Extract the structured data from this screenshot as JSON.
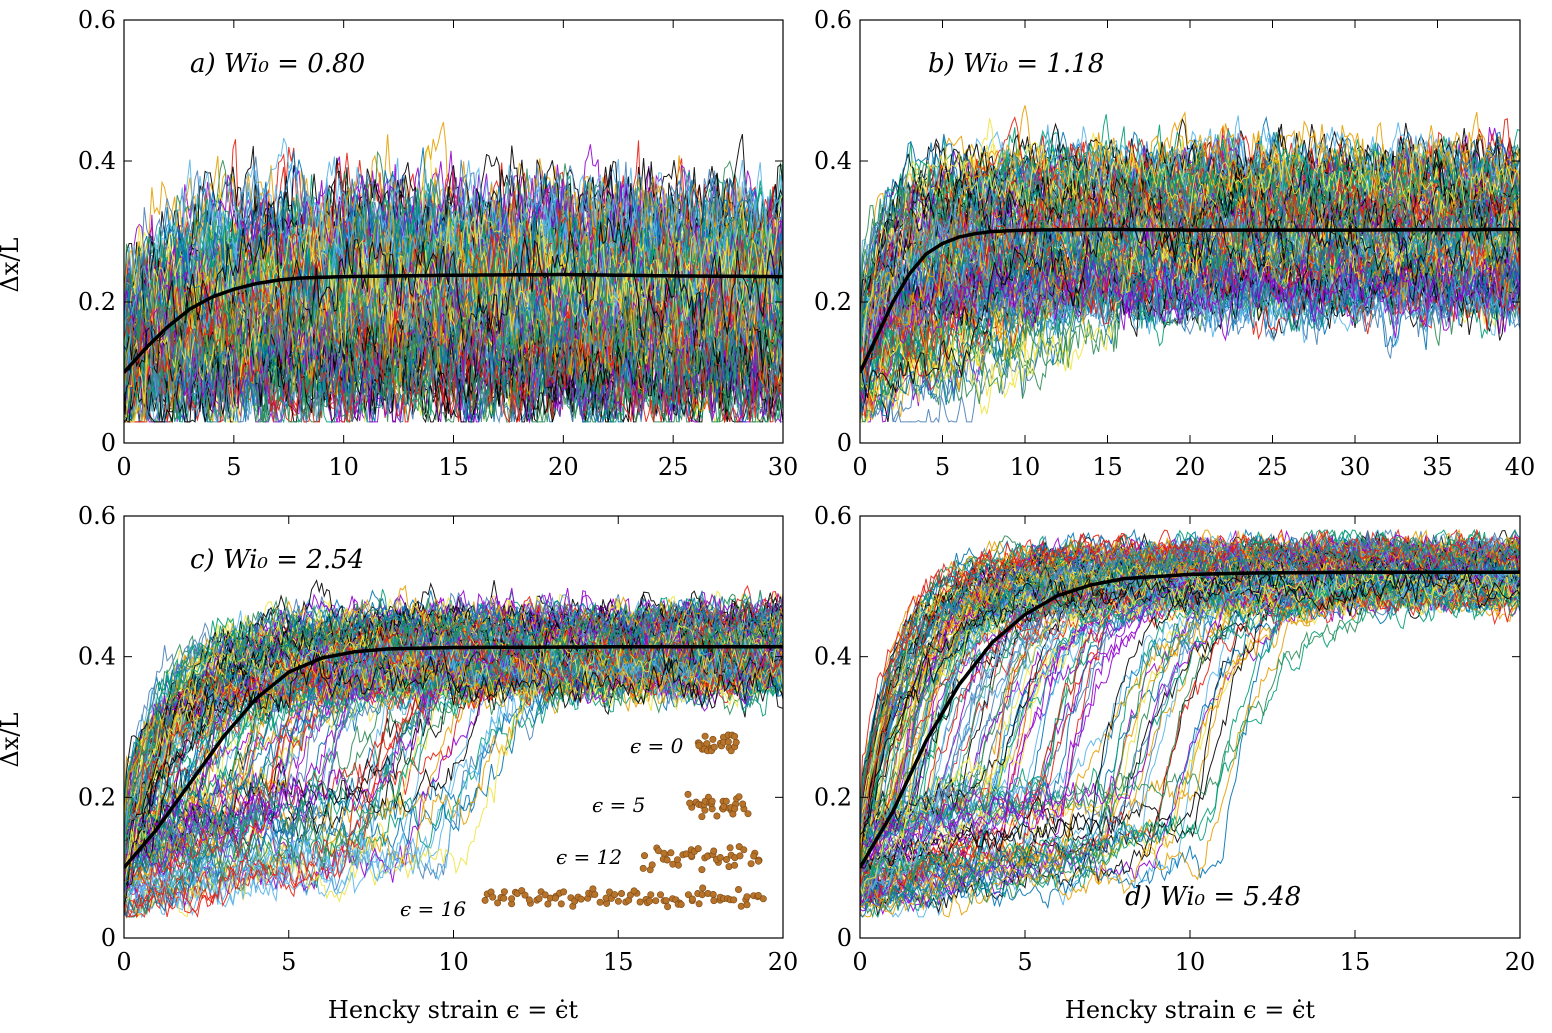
{
  "figure": {
    "x_title": "Hencky strain ϵ = ϵ̇t",
    "y_title": "Δx/L"
  },
  "colors": {
    "mean_curve": "#000000",
    "trajectory_palette": [
      "#9400d3",
      "#009e73",
      "#56b4e9",
      "#e69f00",
      "#f0e442",
      "#0072b2",
      "#e51e10",
      "#000000",
      "#4a7fb5",
      "#2e8b57"
    ],
    "bead": "#b8732a"
  },
  "chart_data": [
    {
      "id": "a",
      "type": "line",
      "label": "a) Wi₀ = 0.80",
      "xlim": [
        0,
        30
      ],
      "ylim": [
        0,
        0.6
      ],
      "xticks": [
        0,
        5,
        10,
        15,
        20,
        25,
        30
      ],
      "yticks": [
        0,
        0.2,
        0.4,
        0.6
      ],
      "ytick_labels": [
        "0",
        "0.2",
        "0.4",
        "0.6"
      ],
      "mean_curve": {
        "x": [
          0,
          1,
          2,
          3,
          4,
          5,
          6,
          7,
          8,
          10,
          15,
          20,
          25,
          30
        ],
        "y": [
          0.1,
          0.135,
          0.165,
          0.19,
          0.207,
          0.218,
          0.226,
          0.231,
          0.234,
          0.236,
          0.238,
          0.239,
          0.237,
          0.236
        ]
      },
      "trajectories": {
        "count": 150,
        "band_lower": 0.08,
        "band_upper": 0.33,
        "noise": 0.1
      }
    },
    {
      "id": "b",
      "type": "line",
      "label": "b) Wi₀ = 1.18",
      "xlim": [
        0,
        40
      ],
      "ylim": [
        0,
        0.6
      ],
      "xticks": [
        0,
        5,
        10,
        15,
        20,
        25,
        30,
        35,
        40
      ],
      "yticks": [
        0,
        0.2,
        0.4,
        0.6
      ],
      "ytick_labels": [
        "0",
        "0.2",
        "0.4",
        "0.6"
      ],
      "mean_curve": {
        "x": [
          0,
          1,
          2,
          3,
          4,
          5,
          6,
          7,
          8,
          10,
          15,
          20,
          30,
          40
        ],
        "y": [
          0.1,
          0.15,
          0.2,
          0.24,
          0.268,
          0.283,
          0.292,
          0.297,
          0.3,
          0.302,
          0.303,
          0.302,
          0.302,
          0.303
        ]
      },
      "trajectories": {
        "count": 150,
        "band_lower": 0.2,
        "band_upper": 0.4,
        "noise": 0.09
      }
    },
    {
      "id": "c",
      "type": "line",
      "label": "c) Wi₀ = 2.54",
      "xlim": [
        0,
        20
      ],
      "ylim": [
        0,
        0.6
      ],
      "xticks": [
        0,
        5,
        10,
        15,
        20
      ],
      "yticks": [
        0,
        0.2,
        0.4,
        0.6
      ],
      "ytick_labels": [
        "0",
        "0.2",
        "0.4",
        "0.6"
      ],
      "mean_curve": {
        "x": [
          0,
          1,
          2,
          3,
          4,
          5,
          6,
          7,
          8,
          10,
          15,
          20
        ],
        "y": [
          0.1,
          0.155,
          0.22,
          0.285,
          0.34,
          0.378,
          0.398,
          0.407,
          0.411,
          0.413,
          0.414,
          0.414
        ]
      },
      "trajectories": {
        "count": 180,
        "band_lower": 0.36,
        "band_upper": 0.46,
        "noise": 0.06
      },
      "insets": [
        {
          "label": "ϵ = 0"
        },
        {
          "label": "ϵ = 5"
        },
        {
          "label": "ϵ = 12"
        },
        {
          "label": "ϵ = 16"
        }
      ]
    },
    {
      "id": "d",
      "type": "line",
      "label": "d) Wi₀ = 5.48",
      "xlim": [
        0,
        20
      ],
      "ylim": [
        0,
        0.6
      ],
      "xticks": [
        0,
        5,
        10,
        15,
        20
      ],
      "yticks": [
        0,
        0.2,
        0.4,
        0.6
      ],
      "ytick_labels": [
        "0",
        "0.2",
        "0.4",
        "0.6"
      ],
      "mean_curve": {
        "x": [
          0,
          1,
          2,
          3,
          4,
          5,
          6,
          7,
          8,
          10,
          12,
          15,
          20
        ],
        "y": [
          0.1,
          0.18,
          0.28,
          0.36,
          0.42,
          0.46,
          0.487,
          0.502,
          0.511,
          0.517,
          0.519,
          0.52,
          0.52
        ]
      },
      "trajectories": {
        "count": 180,
        "band_lower": 0.48,
        "band_upper": 0.555,
        "noise": 0.045
      }
    }
  ]
}
